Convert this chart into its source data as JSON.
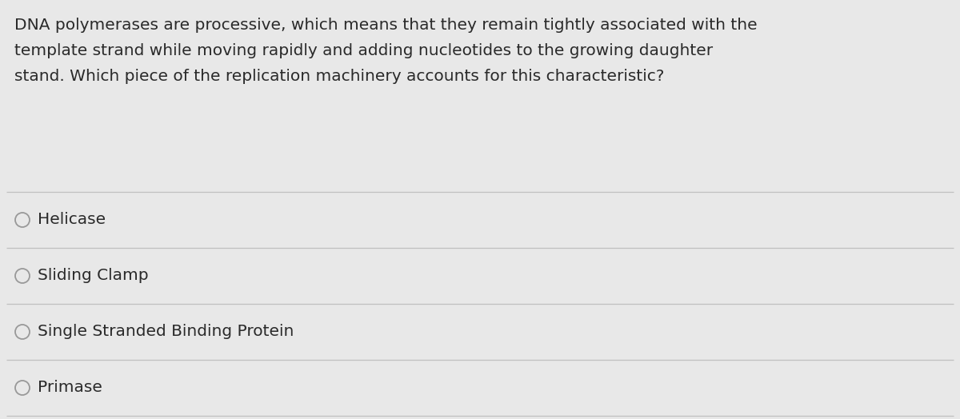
{
  "background_color": "#e8e8e8",
  "question_lines": [
    "DNA polymerases are processive, which means that they remain tightly associated with the",
    "template strand while moving rapidly and adding nucleotides to the growing daughter",
    "stand. Which piece of the replication machinery accounts for this characteristic?"
  ],
  "options": [
    "Helicase",
    "Sliding Clamp",
    "Single Stranded Binding Protein",
    "Primase"
  ],
  "text_color": "#2a2a2a",
  "line_color": "#c0c0c0",
  "circle_edge_color": "#999999",
  "question_fontsize": 14.5,
  "option_fontsize": 14.5,
  "fig_width": 12.0,
  "fig_height": 5.24,
  "dpi": 100
}
